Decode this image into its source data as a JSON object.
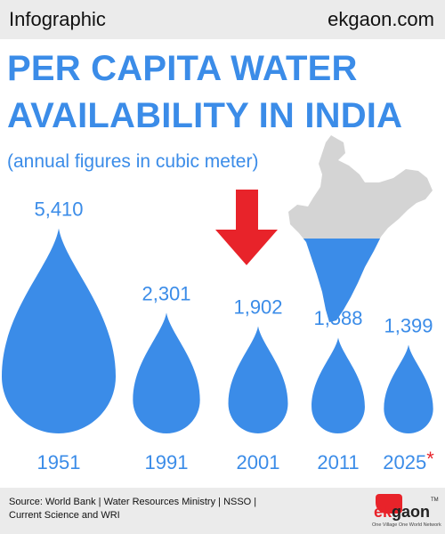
{
  "header": {
    "left_label": "Infographic",
    "right_label": "ekgaon.com"
  },
  "title_line1": "PER CAPITA WATER",
  "title_line2": "AVAILABILITY IN INDIA",
  "subtitle": "(annual figures in cubic meter)",
  "chart_data": {
    "type": "bar",
    "categories": [
      "1951",
      "1991",
      "2001",
      "2011",
      "2025"
    ],
    "values": [
      5410,
      2301,
      1902,
      1588,
      1399
    ],
    "value_labels": [
      "5,410",
      "2,301",
      "1,902",
      "1,588",
      "1,399"
    ],
    "category_markers": [
      "",
      "",
      "",
      "",
      "*"
    ],
    "highlight_category": "2001",
    "bar_color": "#3b8ce8",
    "arrow_color": "#e8232a"
  },
  "map": {
    "icon": "india-map-icon",
    "land_color": "#d4d4d4",
    "water_stressed_color": "#3b8ce8"
  },
  "footer": {
    "source_line1": "Source: World Bank | Water Resources Ministry | NSSO |",
    "source_line2": "Current Science and WRI"
  },
  "logo": {
    "ek": "ék",
    "gaon": "gaon",
    "tm": "TM",
    "tagline": "One Village One World Network"
  },
  "colors": {
    "accent": "#3b8ce8",
    "footer_bg": "#ebebeb",
    "arrow": "#e8232a",
    "asterisk": "#e8232a"
  }
}
